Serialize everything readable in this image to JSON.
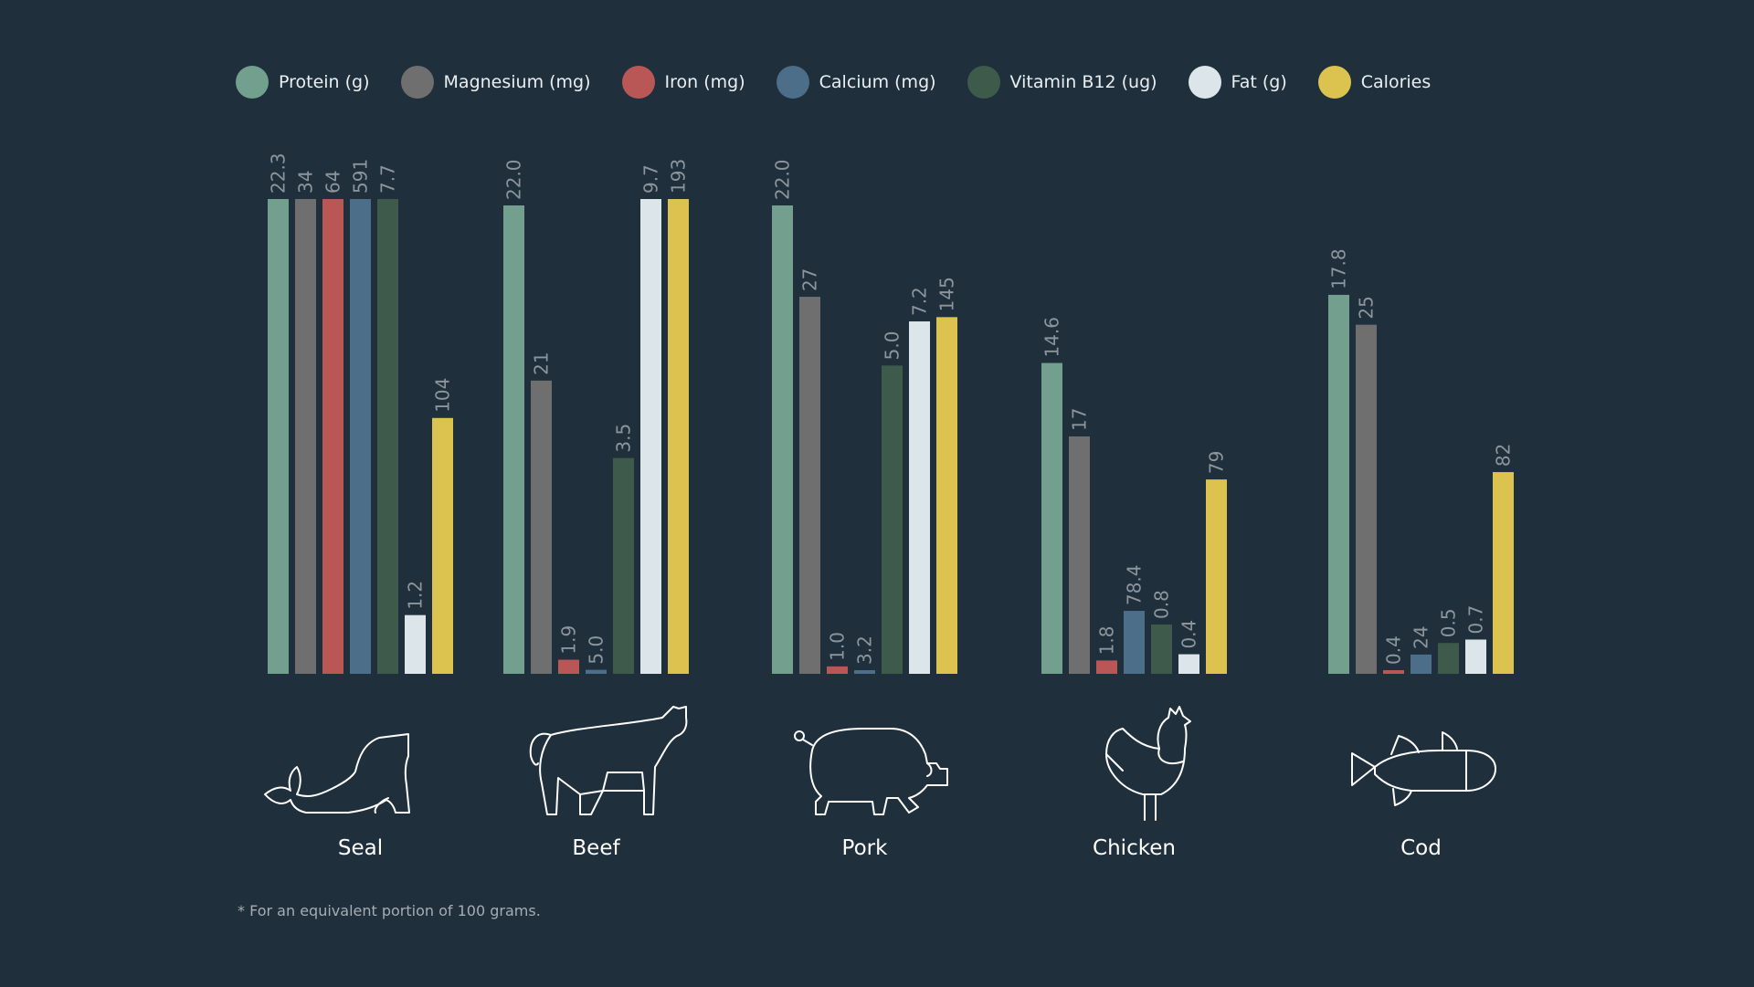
{
  "colors": {
    "background": "#1f2f3c",
    "series": [
      "#739f8e",
      "#706f6f",
      "#b85756",
      "#4c6e88",
      "#3e5a4b",
      "#dce6ea",
      "#dcc34f"
    ],
    "value_label": "#8c959c",
    "icon_stroke": "#ffffff"
  },
  "chart_data": {
    "type": "bar",
    "title": "",
    "xlabel": "",
    "ylabel": "",
    "categories": [
      "Seal",
      "Beef",
      "Pork",
      "Chicken",
      "Cod"
    ],
    "series": [
      {
        "name": "Protein (g)",
        "values": [
          22.3,
          22.0,
          22.0,
          14.6,
          17.8
        ],
        "labels": [
          "22.3",
          "22.0",
          "22.0",
          "14.6",
          "17.8"
        ]
      },
      {
        "name": "Magnesium (mg)",
        "values": [
          34,
          21,
          27,
          17,
          25
        ],
        "labels": [
          "34",
          "21",
          "27",
          "17",
          "25"
        ]
      },
      {
        "name": "Iron (mg)",
        "values": [
          64,
          1.9,
          1.0,
          1.8,
          0.4
        ],
        "labels": [
          "64",
          "1.9",
          "1.0",
          "1.8",
          "0.4"
        ]
      },
      {
        "name": "Calcium (mg)",
        "values": [
          591,
          5.0,
          3.2,
          78.4,
          24
        ],
        "labels": [
          "591",
          "5.0",
          "3.2",
          "78.4",
          "24"
        ]
      },
      {
        "name": "Vitamin B12 (ug)",
        "values": [
          7.7,
          3.5,
          5.0,
          0.8,
          0.5
        ],
        "labels": [
          "7.7",
          "3.5",
          "5.0",
          "0.8",
          "0.5"
        ]
      },
      {
        "name": "Fat (g)",
        "values": [
          1.2,
          9.7,
          7.2,
          0.4,
          0.7
        ],
        "labels": [
          "1.2",
          "9.7",
          "7.2",
          "0.4",
          "0.7"
        ]
      },
      {
        "name": "Calories",
        "values": [
          104,
          193,
          145,
          79,
          82
        ],
        "labels": [
          "104",
          "193",
          "145",
          "79",
          "82"
        ]
      }
    ],
    "legend_placement": "top-left",
    "grid": false,
    "value_labels": "rotated above bars",
    "per_series_scale": true
  },
  "icons": [
    "seal-icon",
    "cow-icon",
    "pig-icon",
    "chicken-icon",
    "fish-icon"
  ],
  "footnote": "* For an equivalent portion of 100 grams."
}
